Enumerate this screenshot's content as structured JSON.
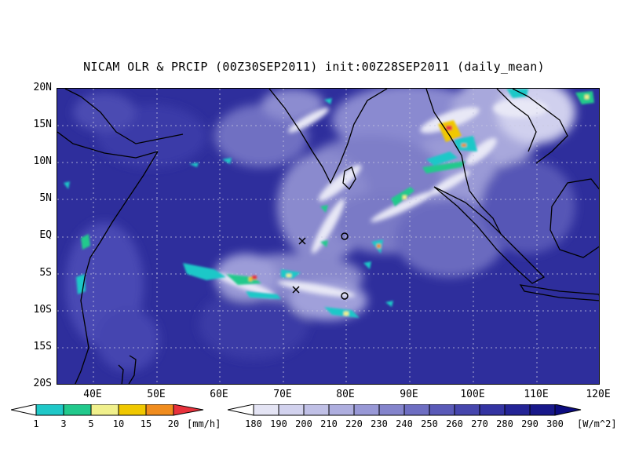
{
  "title": "NICAM OLR & PRCIP (00Z30SEP2011) init:00Z28SEP2011 (daily_mean)",
  "y_axis_labels": [
    "20N",
    "15N",
    "10N",
    "5N",
    "EQ",
    "5S",
    "10S",
    "15S",
    "20S"
  ],
  "x_axis_labels": [
    "40E",
    "50E",
    "60E",
    "70E",
    "80E",
    "90E",
    "100E",
    "110E",
    "120E"
  ],
  "precip_colorbar": {
    "ticks": [
      "1",
      "3",
      "5",
      "10",
      "15",
      "20"
    ],
    "unit": "[mm/h]",
    "colors": [
      "#ffffff",
      "#1fc8c8",
      "#22c98c",
      "#f0f08c",
      "#f0c800",
      "#f08c1e",
      "#e8323c"
    ]
  },
  "olr_colorbar": {
    "ticks": [
      "180",
      "190",
      "200",
      "210",
      "220",
      "230",
      "240",
      "250",
      "260",
      "270",
      "280",
      "290",
      "300"
    ],
    "unit": "[W/m^2]",
    "colors": [
      "#ffffff",
      "#e4e4f4",
      "#d2d2ee",
      "#c0c0e6",
      "#aeaedf",
      "#9898d6",
      "#8484cc",
      "#6e6ec2",
      "#5a5ab8",
      "#4646ad",
      "#3434a2",
      "#242496",
      "#18188a",
      "#0c0c80"
    ]
  },
  "colors": {
    "ocean": "#2e2e9c",
    "coastline": "#000000",
    "grid": "#c8c8e0"
  }
}
